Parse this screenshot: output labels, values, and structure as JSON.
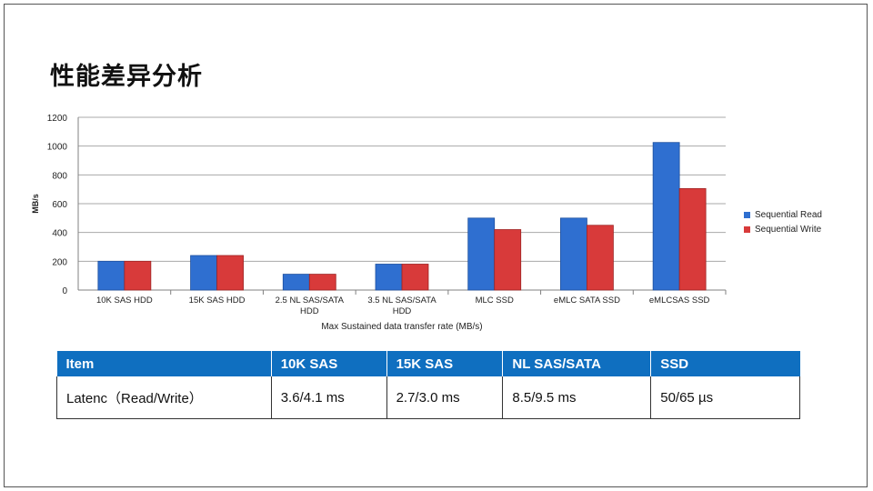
{
  "title": "性能差异分析",
  "chart_data": {
    "type": "bar",
    "categories": [
      "10K SAS HDD",
      "15K SAS HDD",
      "2.5 NL SAS/SATA HDD",
      "3.5 NL SAS/SATA HDD",
      "MLC SSD",
      "eMLC SATA SSD",
      "eMLCSAS  SSD"
    ],
    "category_lines": [
      [
        "10K SAS HDD"
      ],
      [
        "15K SAS HDD"
      ],
      [
        "2.5 NL SAS/SATA",
        "HDD"
      ],
      [
        "3.5 NL SAS/SATA",
        "HDD"
      ],
      [
        "MLC SSD"
      ],
      [
        "eMLC SATA SSD"
      ],
      [
        "eMLCSAS  SSD"
      ]
    ],
    "series": [
      {
        "name": "Sequential Read",
        "values": [
          200,
          240,
          110,
          180,
          500,
          500,
          1025
        ],
        "color": "#2f6fd0"
      },
      {
        "name": "Sequential Write",
        "values": [
          200,
          240,
          110,
          180,
          420,
          450,
          705
        ],
        "color": "#d83a3a"
      }
    ],
    "ylim": [
      0,
      1200
    ],
    "yticks": [
      0,
      200,
      400,
      600,
      800,
      1000,
      1200
    ],
    "xlabel": "Max Sustained data transfer rate (MB/s)",
    "ylabel": "MB/s",
    "grid": true,
    "legend": "right"
  },
  "table": {
    "headers": [
      "Item",
      "10K SAS",
      "15K SAS",
      "NL SAS/SATA",
      "SSD"
    ],
    "rows": [
      [
        "Latenc（Read/Write）",
        "3.6/4.1 ms",
        "2.7/3.0 ms",
        "8.5/9.5 ms",
        "50/65 µs"
      ]
    ]
  }
}
